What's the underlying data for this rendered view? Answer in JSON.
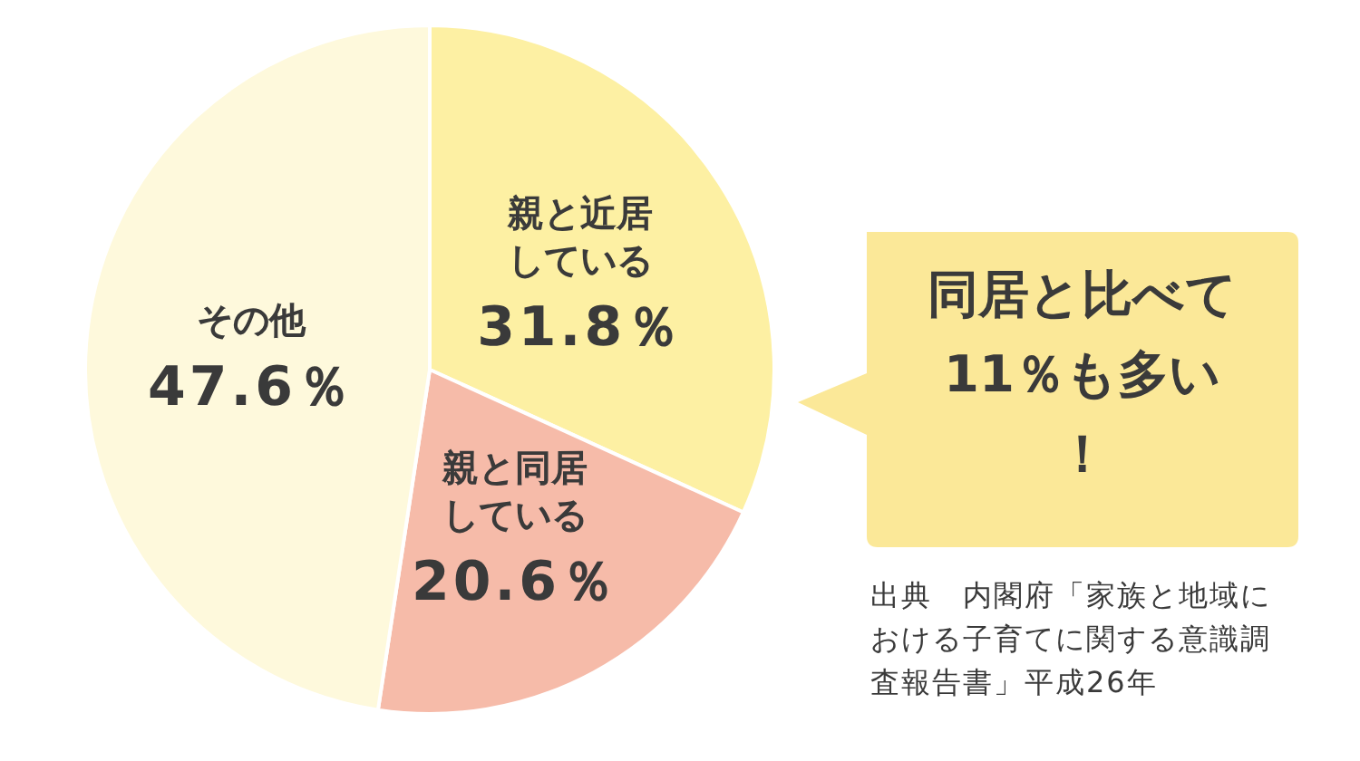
{
  "chart_data": {
    "type": "pie",
    "categories": [
      "親と近居している",
      "親と同居している",
      "その他"
    ],
    "values": [
      31.8,
      20.6,
      47.6
    ],
    "colors": [
      "#fdf0a3",
      "#f6bba9",
      "#fef9dc"
    ],
    "value_labels": [
      "31.8％",
      "20.6％",
      "47.6％"
    ],
    "annotations": [
      "同居と比べて11％も多い！",
      "出典　内閣府「家族と地域における子育てに関する意識調査報告書」平成26年"
    ]
  }
}
